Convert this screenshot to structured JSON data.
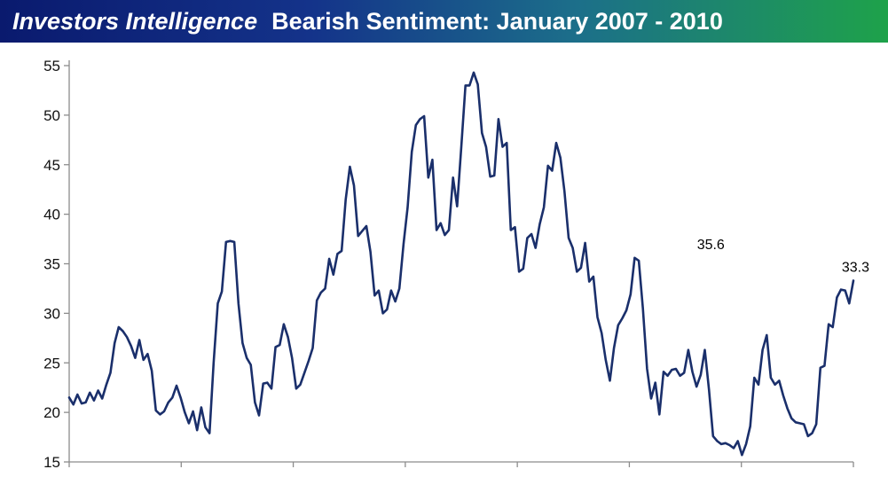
{
  "header": {
    "brand": "Investors Intelligence",
    "title": "Bearish Sentiment: January 2007 - 2010"
  },
  "colors": {
    "line": "#1a2f6b",
    "axis": "#8c8c8c"
  },
  "chart_data": {
    "type": "line",
    "title": "Investors Intelligence  Bearish Sentiment: January 2007 - 2010",
    "xlabel": "",
    "ylabel": "",
    "ylim": [
      15,
      55
    ],
    "yticks": [
      15,
      20,
      25,
      30,
      35,
      40,
      45,
      50,
      55
    ],
    "xlim": [
      0,
      165
    ],
    "x_category_count": 7,
    "grid": false,
    "series": [
      {
        "values": [
          21.5,
          20.8,
          21.8,
          20.9,
          21,
          22,
          21.2,
          22.2,
          21.4,
          22.8,
          24,
          27,
          28.6,
          28.2,
          27.6,
          26.7,
          25.5,
          27.3,
          25.3,
          25.9,
          24.2,
          20.2,
          19.8,
          20.1,
          21,
          21.5,
          22.7,
          21.5,
          20,
          18.9,
          20.1,
          18.2,
          20.5,
          18.5,
          17.9,
          25,
          31,
          32.2,
          37.2,
          37.3,
          37.2,
          31,
          27,
          25.5,
          24.8,
          21,
          19.7,
          22.9,
          23,
          22.4,
          26.6,
          26.8,
          28.9,
          27.6,
          25.5,
          22.4,
          22.8,
          24,
          25.2,
          26.5,
          31.3,
          32.1,
          32.5,
          35.5,
          33.9,
          36,
          36.3,
          41.5,
          44.8,
          42.9,
          37.8,
          38.3,
          38.8,
          36.2,
          31.8,
          32.3,
          30,
          30.4,
          32.3,
          31.2,
          32.5,
          37,
          40.7,
          46.3,
          49,
          49.6,
          49.9,
          43.7,
          45.5,
          38.4,
          39.1,
          37.9,
          38.4,
          43.7,
          40.8,
          46.8,
          53,
          53,
          54.3,
          53.1,
          48.2,
          46.8,
          43.8,
          43.9,
          49.6,
          46.8,
          47.2,
          38.4,
          38.7,
          34.2,
          34.5,
          37.6,
          38,
          36.6,
          39,
          40.7,
          44.9,
          44.4,
          47.2,
          45.7,
          42.3,
          37.6,
          36.6,
          34.2,
          34.6,
          37.1,
          33.2,
          33.7,
          29.6,
          28,
          25.3,
          23.2,
          26.5,
          28.8,
          29.5,
          30.3,
          31.9,
          35.6,
          35.3,
          30.5,
          24.4,
          21.4,
          23,
          19.8,
          24.1,
          23.7,
          24.3,
          24.4,
          23.7,
          24,
          26.3,
          24.1,
          22.6,
          23.8,
          26.3,
          22.3,
          17.6,
          17.1,
          16.8,
          16.9,
          16.7,
          16.4,
          17.1,
          15.7,
          16.8,
          18.6,
          23.5,
          22.8,
          26.3,
          27.8,
          23.5,
          22.8,
          23.2,
          21.7,
          20.4,
          19.4,
          19,
          18.9,
          18.8,
          17.6,
          17.9,
          18.8,
          24.5,
          24.7,
          28.9,
          28.6,
          31.6,
          32.4,
          32.3,
          31,
          33.3
        ]
      }
    ],
    "annotations": [
      {
        "text": "35.6",
        "index": 135,
        "value": 35.6
      },
      {
        "text": "33.3",
        "index": 165,
        "value": 33.3
      }
    ]
  }
}
